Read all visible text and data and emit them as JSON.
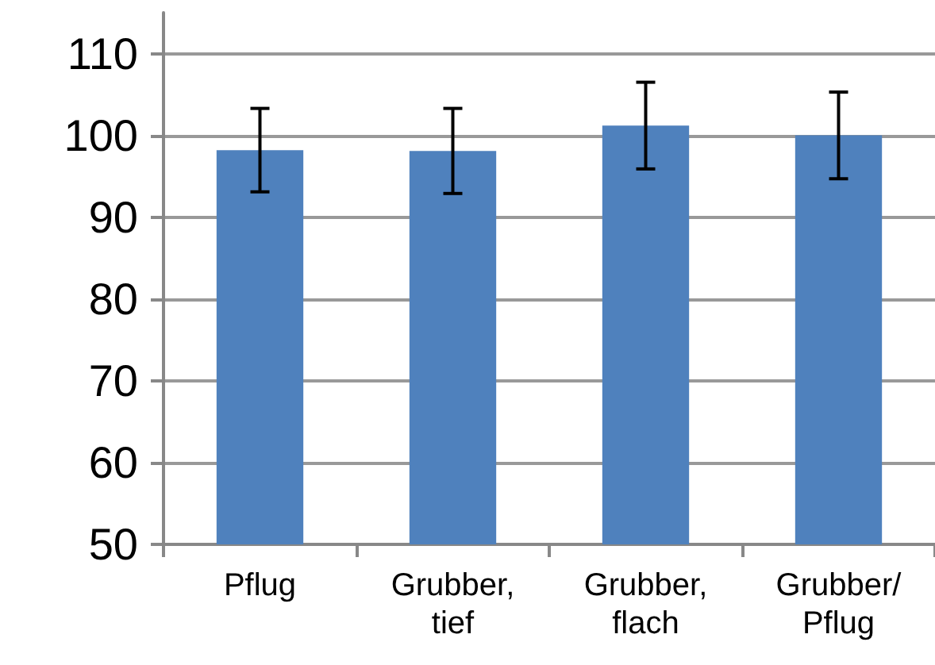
{
  "chart_data": {
    "type": "bar",
    "categories": [
      "Pflug",
      "Grubber, tief",
      "Grubber, flach",
      "Grubber/Pflug"
    ],
    "values": [
      98.2,
      98.1,
      101.2,
      100.0
    ],
    "errors": [
      5.1,
      5.2,
      5.3,
      5.3
    ],
    "color": "#4f81bd",
    "ylim": [
      50,
      115
    ],
    "yticks": [
      50,
      60,
      70,
      80,
      90,
      100,
      110
    ],
    "grid": "y"
  }
}
